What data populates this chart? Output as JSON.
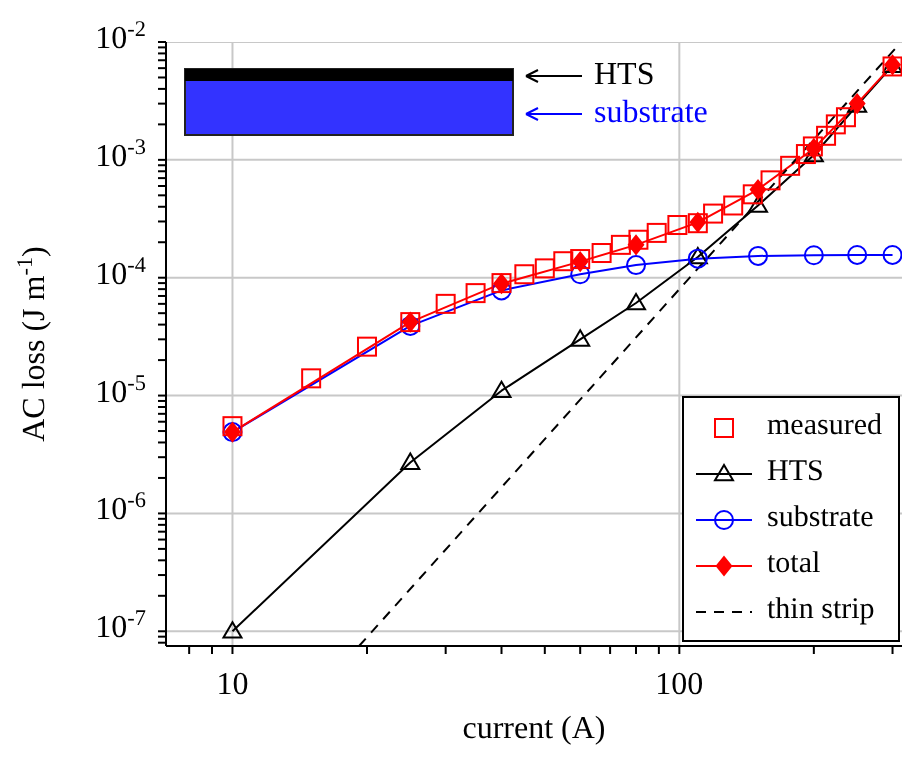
{
  "chart_data": {
    "type": "line",
    "xlabel": "current (A)",
    "ylabel": "AC loss (J m$^{-1}$)",
    "log": "xy",
    "grid": true,
    "legend": "bottom right",
    "xlim": [
      7.1,
      315
    ],
    "xticks": [
      {
        "value": 8,
        "label": null
      },
      {
        "value": 9,
        "label": null
      },
      10,
      {
        "value": 20,
        "label": null
      },
      {
        "value": 30,
        "label": null
      },
      {
        "value": 40,
        "label": null
      },
      {
        "value": 50,
        "label": null
      },
      {
        "value": 60,
        "label": null
      },
      {
        "value": 70,
        "label": null
      },
      {
        "value": 80,
        "label": null
      },
      {
        "value": 90,
        "label": null
      },
      100,
      {
        "value": 200,
        "label": null
      },
      {
        "value": 300,
        "label": null
      }
    ],
    "ylim": [
      7.5e-08,
      0.01
    ],
    "yticks": [
      {
        "value": 8e-08,
        "label": null
      },
      {
        "value": 9e-08,
        "label": null
      },
      {
        "value": 1e-07,
        "label": "10$^{-7}$"
      },
      {
        "value": 2e-07,
        "label": null
      },
      {
        "value": 3e-07,
        "label": null
      },
      {
        "value": 4e-07,
        "label": null
      },
      {
        "value": 5e-07,
        "label": null
      },
      {
        "value": 6e-07,
        "label": null
      },
      {
        "value": 7e-07,
        "label": null
      },
      {
        "value": 8e-07,
        "label": null
      },
      {
        "value": 9e-07,
        "label": null
      },
      {
        "value": 1e-06,
        "label": "10$^{-6}$"
      },
      {
        "value": 2e-06,
        "label": null
      },
      {
        "value": 3e-06,
        "label": null
      },
      {
        "value": 4e-06,
        "label": null
      },
      {
        "value": 5e-06,
        "label": null
      },
      {
        "value": 6e-06,
        "label": null
      },
      {
        "value": 7e-06,
        "label": null
      },
      {
        "value": 8e-06,
        "label": null
      },
      {
        "value": 9e-06,
        "label": null
      },
      {
        "value": 1e-05,
        "label": "10$^{-5}$"
      },
      {
        "value": 2e-05,
        "label": null
      },
      {
        "value": 3e-05,
        "label": null
      },
      {
        "value": 4e-05,
        "label": null
      },
      {
        "value": 5e-05,
        "label": null
      },
      {
        "value": 6e-05,
        "label": null
      },
      {
        "value": 7e-05,
        "label": null
      },
      {
        "value": 8e-05,
        "label": null
      },
      {
        "value": 9e-05,
        "label": null
      },
      {
        "value": 0.0001,
        "label": "10$^{-4}$"
      },
      {
        "value": 0.0002,
        "label": null
      },
      {
        "value": 0.0003,
        "label": null
      },
      {
        "value": 0.0004,
        "label": null
      },
      {
        "value": 0.0005,
        "label": null
      },
      {
        "value": 0.0006,
        "label": null
      },
      {
        "value": 0.0007,
        "label": null
      },
      {
        "value": 0.0008,
        "label": null
      },
      {
        "value": 0.0009,
        "label": null
      },
      {
        "value": 0.001,
        "label": "10$^{-3}$"
      },
      {
        "value": 0.002,
        "label": null
      },
      {
        "value": 0.003,
        "label": null
      },
      {
        "value": 0.004,
        "label": null
      },
      {
        "value": 0.005,
        "label": null
      },
      {
        "value": 0.006,
        "label": null
      },
      {
        "value": 0.007,
        "label": null
      },
      {
        "value": 0.008,
        "label": null
      },
      {
        "value": 0.009,
        "label": null
      },
      {
        "value": 0.01,
        "label": "10$^{-2}$"
      }
    ],
    "annotations": [
      "HTS",
      "substrate"
    ],
    "series": [
      {
        "name": "measured",
        "type": "scatter",
        "marker": "square",
        "color": "#ff0000",
        "x": [
          10,
          15,
          20,
          25,
          30,
          35,
          40,
          45,
          50,
          55,
          60,
          67,
          74,
          81,
          89,
          99,
          110,
          119,
          132,
          146,
          160,
          177,
          192,
          199,
          213,
          224,
          236,
          300
        ],
        "values": [
          5.5e-06,
          1.4e-05,
          2.6e-05,
          4.2e-05,
          6e-05,
          7.4e-05,
          9e-05,
          0.000107,
          0.00012,
          0.000138,
          0.000144,
          0.000162,
          0.00019,
          0.00021,
          0.00024,
          0.00028,
          0.00029,
          0.00035,
          0.00041,
          0.00051,
          0.00067,
          0.00089,
          0.00112,
          0.0013,
          0.0016,
          0.002,
          0.0023,
          0.0062
        ]
      },
      {
        "name": "HTS",
        "marker": "triangle",
        "line_style": "solid",
        "color": "#000000",
        "x": [
          10,
          25,
          40,
          60,
          80,
          110,
          150,
          200,
          250,
          300
        ],
        "values": [
          1e-07,
          2.7e-06,
          1.1e-05,
          3e-05,
          6.1e-05,
          0.00015,
          0.00041,
          0.0011,
          0.0029,
          0.0063
        ]
      },
      {
        "name": "substrate",
        "marker": "circle",
        "line_style": "solid",
        "color": "#0000ff",
        "x": [
          10,
          25,
          40,
          60,
          80,
          110,
          150,
          200,
          250,
          300
        ],
        "values": [
          4.9e-06,
          3.9e-05,
          7.8e-05,
          0.000107,
          0.000128,
          0.000145,
          0.000153,
          0.000155,
          0.000156,
          0.000156
        ]
      },
      {
        "name": "total",
        "marker": "diamond",
        "line_style": "solid",
        "color": "#ff0000",
        "x": [
          10,
          25,
          40,
          60,
          80,
          110,
          150,
          200,
          250,
          300
        ],
        "values": [
          4.9e-06,
          4.2e-05,
          8.9e-05,
          0.000137,
          0.00019,
          0.000295,
          0.00056,
          0.00125,
          0.003,
          0.0064
        ]
      },
      {
        "name": "thin strip",
        "marker": "none",
        "line_style": "dashed",
        "color": "#000000",
        "x": [
          19.2,
          310
        ],
        "values": [
          7.5e-08,
          0.0095
        ]
      }
    ]
  }
}
